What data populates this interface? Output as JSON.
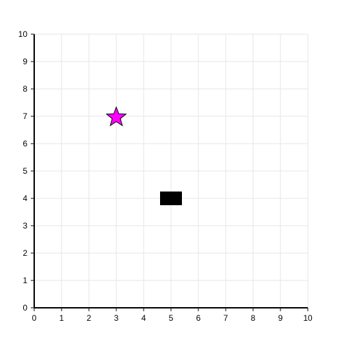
{
  "chart_data": {
    "type": "scatter",
    "xlim": [
      0,
      10
    ],
    "ylim": [
      0,
      10
    ],
    "x_ticks": [
      0,
      1,
      2,
      3,
      4,
      5,
      6,
      7,
      8,
      9,
      10
    ],
    "y_ticks": [
      0,
      1,
      2,
      3,
      4,
      5,
      6,
      7,
      8,
      9,
      10
    ],
    "grid": true,
    "legend": "none",
    "points": [
      {
        "shape": "star",
        "x": 3,
        "y": 7,
        "color": "#ff00ff",
        "stroke": "#000000"
      },
      {
        "shape": "rectangle",
        "x": 5,
        "y": 4,
        "color": "#000000"
      }
    ]
  }
}
